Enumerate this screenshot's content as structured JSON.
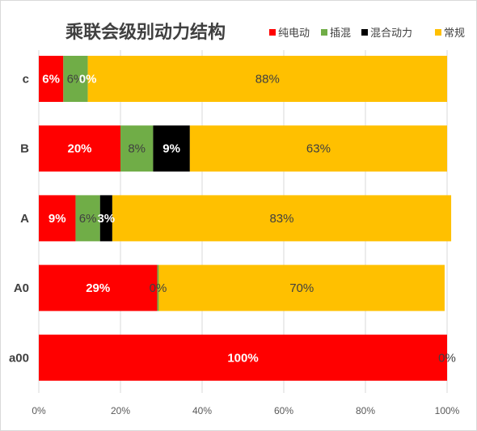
{
  "chart_data": {
    "type": "bar",
    "orientation": "horizontal",
    "stacked": "percent",
    "title": "乘联会级别动力结构",
    "categories": [
      "c",
      "B",
      "A",
      "A0",
      "a00"
    ],
    "series": [
      {
        "name": "纯电动",
        "color": "#ff0000",
        "values": [
          6,
          20,
          9,
          29,
          100
        ],
        "labels": [
          "6%",
          "20%",
          "9%",
          "29%",
          "100%"
        ]
      },
      {
        "name": "插混",
        "color": "#70ad47",
        "values": [
          6,
          8,
          6,
          0.4,
          0
        ],
        "labels": [
          "6%",
          "8%",
          "6%",
          "0%",
          ""
        ]
      },
      {
        "name": "混合动力",
        "color": "#000000",
        "values": [
          0,
          9,
          3,
          0,
          0
        ],
        "labels": [
          "0%",
          "9%",
          "3%",
          "",
          ""
        ]
      },
      {
        "name": "常规",
        "color": "#ffc000",
        "values": [
          88,
          63,
          83,
          70,
          0
        ],
        "labels": [
          "88%",
          "63%",
          "83%",
          "70%",
          "0%"
        ]
      }
    ],
    "xlim": [
      0,
      100
    ],
    "x_ticks": [
      "0%",
      "20%",
      "40%",
      "60%",
      "80%",
      "100%"
    ],
    "legend_position": "top-right",
    "grid": true
  }
}
